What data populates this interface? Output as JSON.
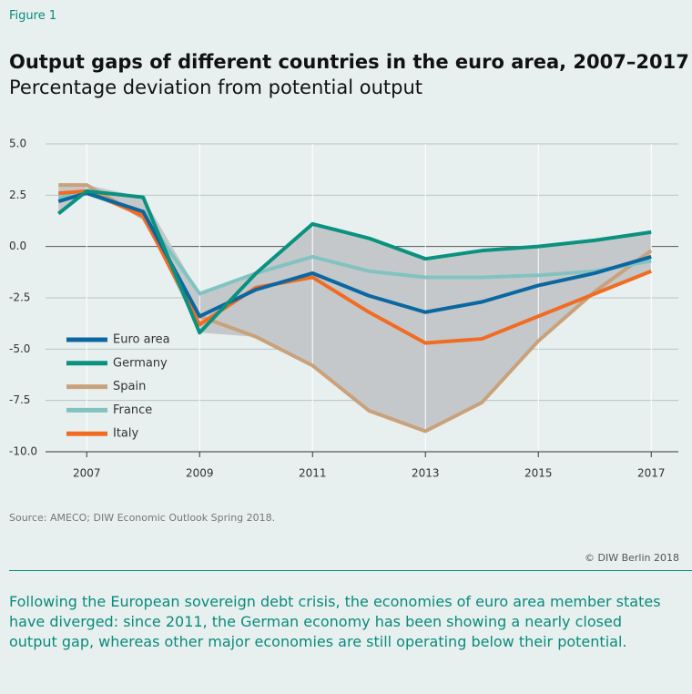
{
  "chart_data": {
    "type": "line",
    "figure_label": "Figure 1",
    "title": "Output gaps of different countries in the euro area, 2007–2017",
    "subtitle": "Percentage deviation from potential output",
    "source": "Source: AMECO; DIW Economic Outlook Spring 2018.",
    "copyright": "© DIW Berlin 2018",
    "caption": "Following the European sovereign debt crisis, the economies of euro area member states have diverged: since 2011, the German economy has been showing a nearly closed output gap, whereas other major economies are still operating below their potential.",
    "x": [
      2006.5,
      2007,
      2008,
      2009,
      2010,
      2011,
      2012,
      2013,
      2014,
      2015,
      2016,
      2017
    ],
    "series": [
      {
        "name": "Euro area",
        "color": "#0b67a0",
        "values": [
          2.2,
          2.6,
          1.7,
          -3.4,
          -2.1,
          -1.3,
          -2.4,
          -3.2,
          -2.7,
          -1.9,
          -1.3,
          -0.5
        ]
      },
      {
        "name": "Germany",
        "color": "#0a917f",
        "values": [
          1.6,
          2.7,
          2.4,
          -4.2,
          -1.3,
          1.1,
          0.4,
          -0.6,
          -0.2,
          0.0,
          0.3,
          0.7
        ]
      },
      {
        "name": "Spain",
        "color": "#c9a27c",
        "values": [
          3.0,
          3.0,
          1.4,
          -3.4,
          -4.4,
          -5.8,
          -8.0,
          -9.0,
          -7.6,
          -4.6,
          -2.2,
          -0.2
        ]
      },
      {
        "name": "France",
        "color": "#82c3c2",
        "values": [
          2.4,
          2.6,
          1.6,
          -2.3,
          -1.3,
          -0.5,
          -1.2,
          -1.5,
          -1.5,
          -1.4,
          -1.2,
          -0.7
        ]
      },
      {
        "name": "Italy",
        "color": "#f26b22",
        "values": [
          2.6,
          2.7,
          1.5,
          -3.8,
          -2.0,
          -1.5,
          -3.2,
          -4.7,
          -4.5,
          -3.4,
          -2.3,
          -1.2
        ]
      }
    ],
    "xlim": [
      2006.27,
      2017.48
    ],
    "xticks": [
      2007,
      2009,
      2011,
      2013,
      2015,
      2017
    ],
    "ylim": [
      -10,
      5
    ],
    "yticks": [
      {
        "value": -10,
        "label": "-10.0"
      },
      -7.5,
      {
        "value": -5,
        "label": "-5.0"
      },
      -2.5,
      {
        "value": 0,
        "label": "0.0"
      },
      2.5,
      {
        "value": 5,
        "label": "5.0"
      }
    ],
    "grid": true,
    "legend": "lower-left"
  }
}
